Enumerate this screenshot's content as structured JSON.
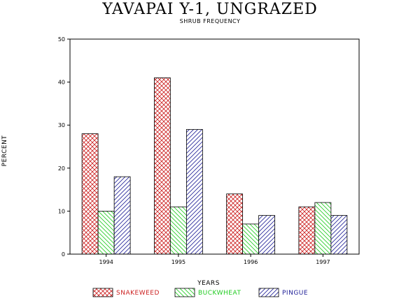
{
  "chart_data": {
    "type": "bar",
    "title": "YAVAPAI Y-1, UNGRAZED",
    "subtitle": "SHRUB FREQUENCY",
    "xlabel": "YEARS",
    "ylabel": "PERCENT",
    "categories": [
      "1994",
      "1995",
      "1996",
      "1997"
    ],
    "ylim": [
      0,
      50
    ],
    "yticks": [
      0,
      10,
      20,
      30,
      40,
      50
    ],
    "grid": false,
    "legend_position": "bottom",
    "series": [
      {
        "name": "SNAKEWEED",
        "values": [
          28,
          41,
          14,
          11
        ],
        "color": "#cc2222",
        "pattern": "crosshatch"
      },
      {
        "name": "BUCKWHEAT",
        "values": [
          10,
          11,
          7,
          12
        ],
        "color": "#22cc22",
        "pattern": "diagonal-back"
      },
      {
        "name": "PINGUE",
        "values": [
          18,
          29,
          9,
          9
        ],
        "color": "#222299",
        "pattern": "diagonal-forward"
      }
    ]
  }
}
